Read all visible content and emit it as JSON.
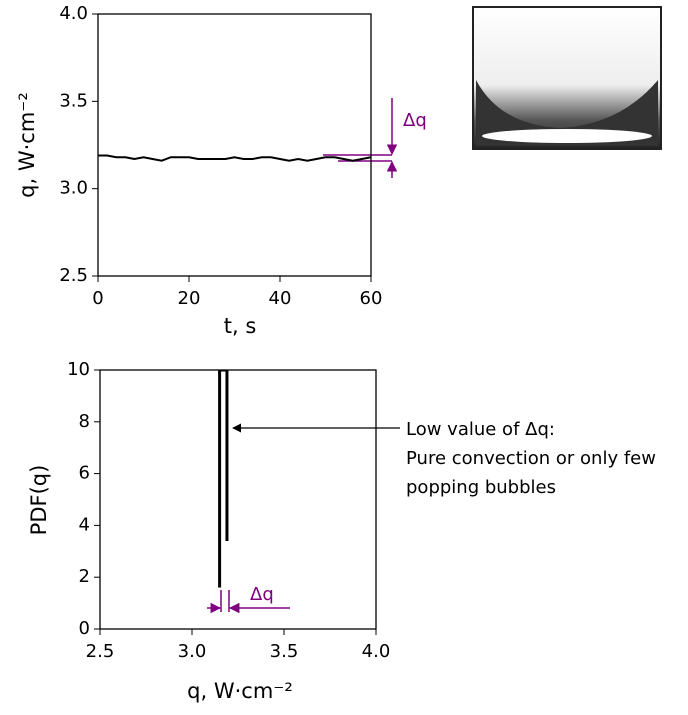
{
  "chart_data": [
    {
      "type": "line",
      "xlabel": "t, s",
      "ylabel": "q, W·cm⁻²",
      "x": [
        0,
        2,
        4,
        6,
        8,
        10,
        12,
        14,
        16,
        18,
        20,
        22,
        24,
        26,
        28,
        30,
        32,
        34,
        36,
        38,
        40,
        42,
        44,
        46,
        48,
        50,
        52,
        54,
        56,
        58,
        60
      ],
      "series": [
        {
          "color": "#000000",
          "values": [
            3.19,
            3.19,
            3.18,
            3.18,
            3.17,
            3.18,
            3.17,
            3.16,
            3.18,
            3.18,
            3.18,
            3.17,
            3.17,
            3.17,
            3.17,
            3.18,
            3.17,
            3.17,
            3.18,
            3.18,
            3.17,
            3.16,
            3.17,
            3.16,
            3.17,
            3.18,
            3.18,
            3.17,
            3.16,
            3.17,
            3.18
          ]
        }
      ],
      "xlim": [
        0,
        60
      ],
      "xticks": [
        0,
        20,
        40,
        60
      ],
      "ylim": [
        2.5,
        4.0
      ],
      "yticks": [
        {
          "value": 2.5,
          "label": "2.5"
        },
        {
          "value": 3,
          "label": "3.0"
        },
        3.5,
        {
          "value": 4,
          "label": "4.0"
        }
      ],
      "annotations": [
        "Δq"
      ]
    },
    {
      "type": "line",
      "xlabel": "q, W·cm⁻²",
      "ylabel": "PDF(q)",
      "x": [
        3.15,
        3.15,
        3.19,
        3.19
      ],
      "series": [
        {
          "color": "#000000",
          "values": [
            1.6,
            10,
            10,
            3.4
          ]
        }
      ],
      "xlim": [
        2.5,
        4.0
      ],
      "xticks": [
        {
          "value": 2.5,
          "label": "2.5"
        },
        {
          "value": 3,
          "label": "3.0"
        },
        3.5,
        {
          "value": 4,
          "label": "4.0"
        }
      ],
      "ylim": [
        0,
        10
      ],
      "yticks": [
        0,
        2,
        4,
        6,
        8,
        10
      ],
      "annotations": [
        "Δq",
        "Low value of Δq:",
        "Pure convection or only few",
        "popping bubbles"
      ]
    }
  ]
}
